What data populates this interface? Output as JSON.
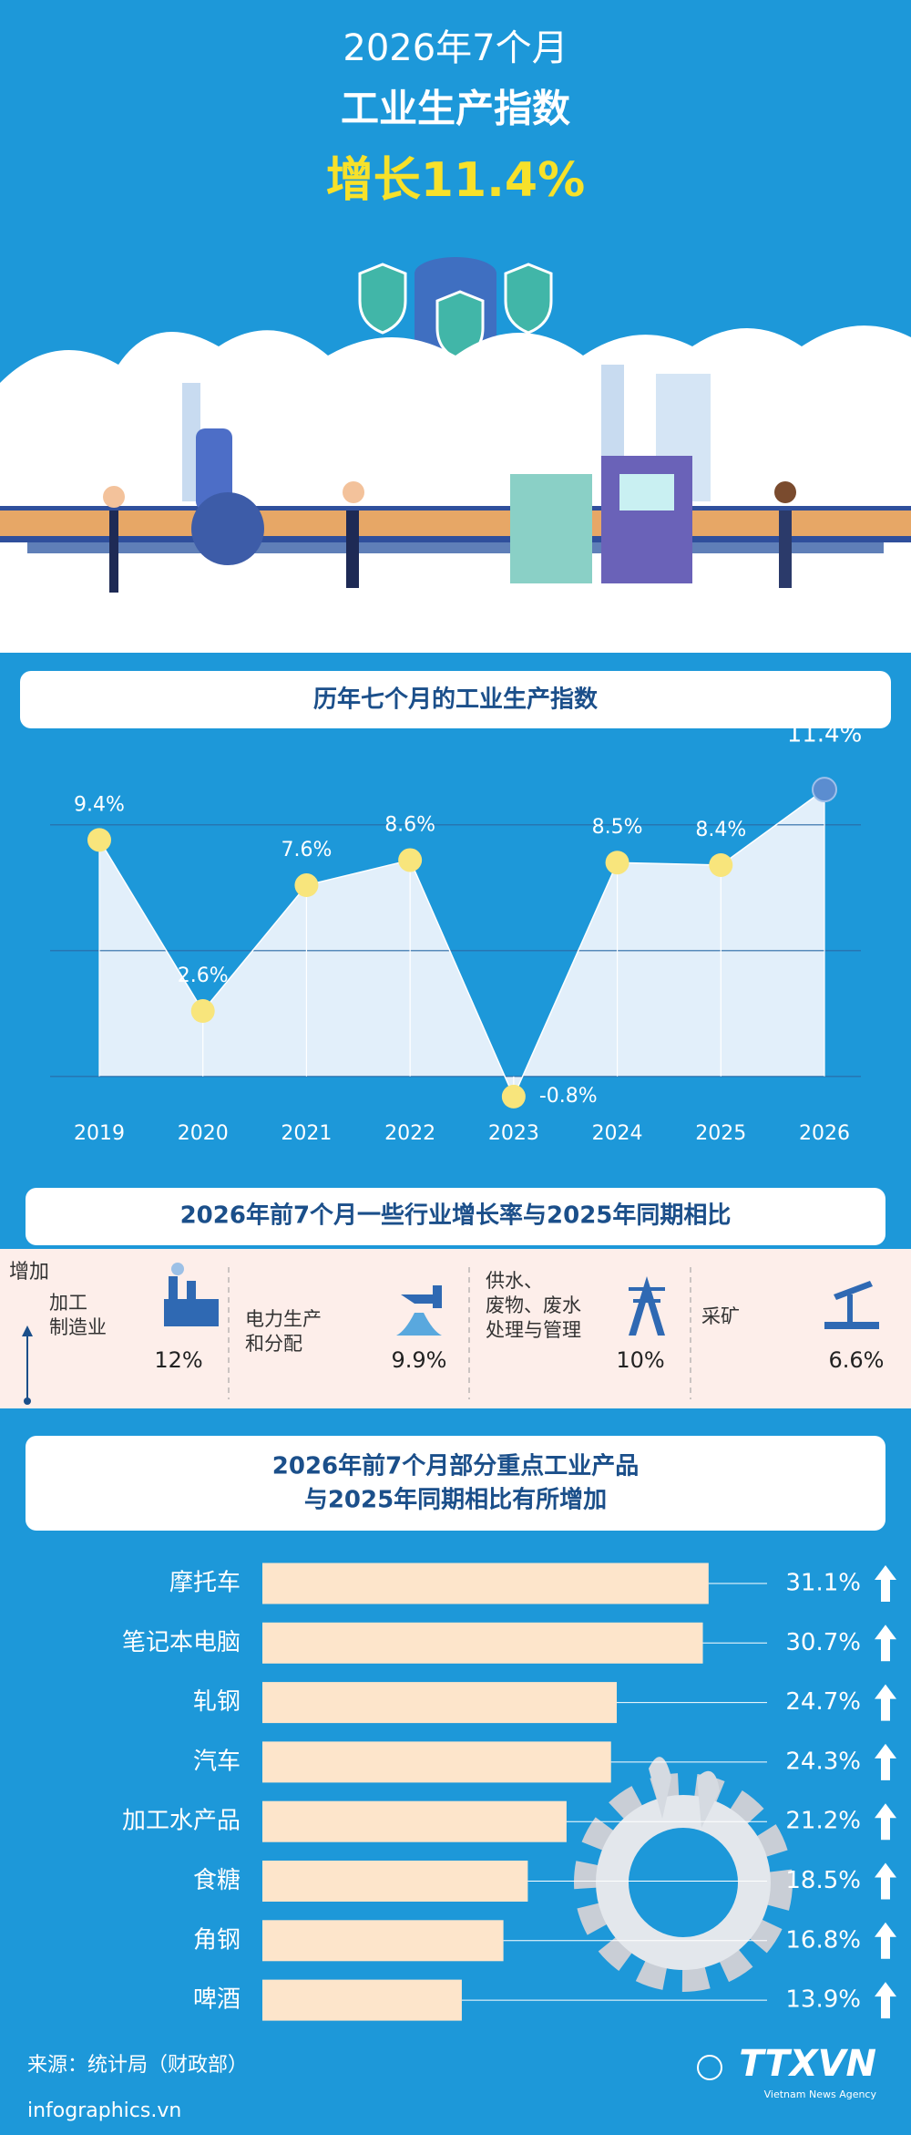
{
  "header": {
    "title": "2026年7个月",
    "subtitle": "工业生产指数",
    "highlight": "增长11.4%"
  },
  "chart_data": [
    {
      "type": "line",
      "title": "历年七个月的工业生产指数",
      "categories": [
        "2019",
        "2020",
        "2021",
        "2022",
        "2023",
        "2024",
        "2025",
        "2026"
      ],
      "values": [
        9.4,
        2.6,
        7.6,
        8.6,
        -0.8,
        8.5,
        8.4,
        11.4
      ],
      "value_labels": [
        "9.4%",
        "2.6%",
        "7.6%",
        "8.6%",
        "-0.8%",
        "8.5%",
        "8.4%",
        "11.4%"
      ],
      "ylim": [
        -2,
        13
      ],
      "yticks": [
        0,
        5,
        10
      ],
      "grid": true,
      "color": "#e2effa",
      "point_color": "#f8e57c",
      "highlight_color": "#5b8dd0"
    },
    {
      "type": "bar",
      "orientation": "horizontal",
      "title": [
        "2026年前7个月部分重点工业产品",
        "与2025年同期相比有所增加"
      ],
      "categories": [
        "摩托车",
        "笔记本电脑",
        "轧钢",
        "汽车",
        "加工水产品",
        "食糖",
        "角钢",
        "啤酒"
      ],
      "values": [
        31.1,
        30.7,
        24.7,
        24.3,
        21.2,
        18.5,
        16.8,
        13.9
      ],
      "value_labels": [
        "31.1%",
        "30.7%",
        "24.7%",
        "24.3%",
        "21.2%",
        "18.5%",
        "16.8%",
        "13.9%"
      ],
      "xlim": [
        0,
        40
      ],
      "color": "#fde5cb"
    }
  ],
  "sectors": {
    "title": "2026年前7个月一些行业增长率与2025年同期相比",
    "axis_label": "增加",
    "items": [
      {
        "label": [
          "加工",
          "制造业"
        ],
        "value_label": "12%"
      },
      {
        "label": [
          "电力生产",
          "和分配"
        ],
        "value_label": "9.9%"
      },
      {
        "label": [
          "供水、",
          "废物、废水",
          "处理与管理"
        ],
        "value_label": "10%"
      },
      {
        "label": [
          "采矿"
        ],
        "value_label": "6.6%"
      }
    ]
  },
  "footer": {
    "source": "来源：统计局（财政部）",
    "site": "infographics.vn",
    "logo": "TTXVN",
    "agency": "Vietnam News Agency"
  }
}
